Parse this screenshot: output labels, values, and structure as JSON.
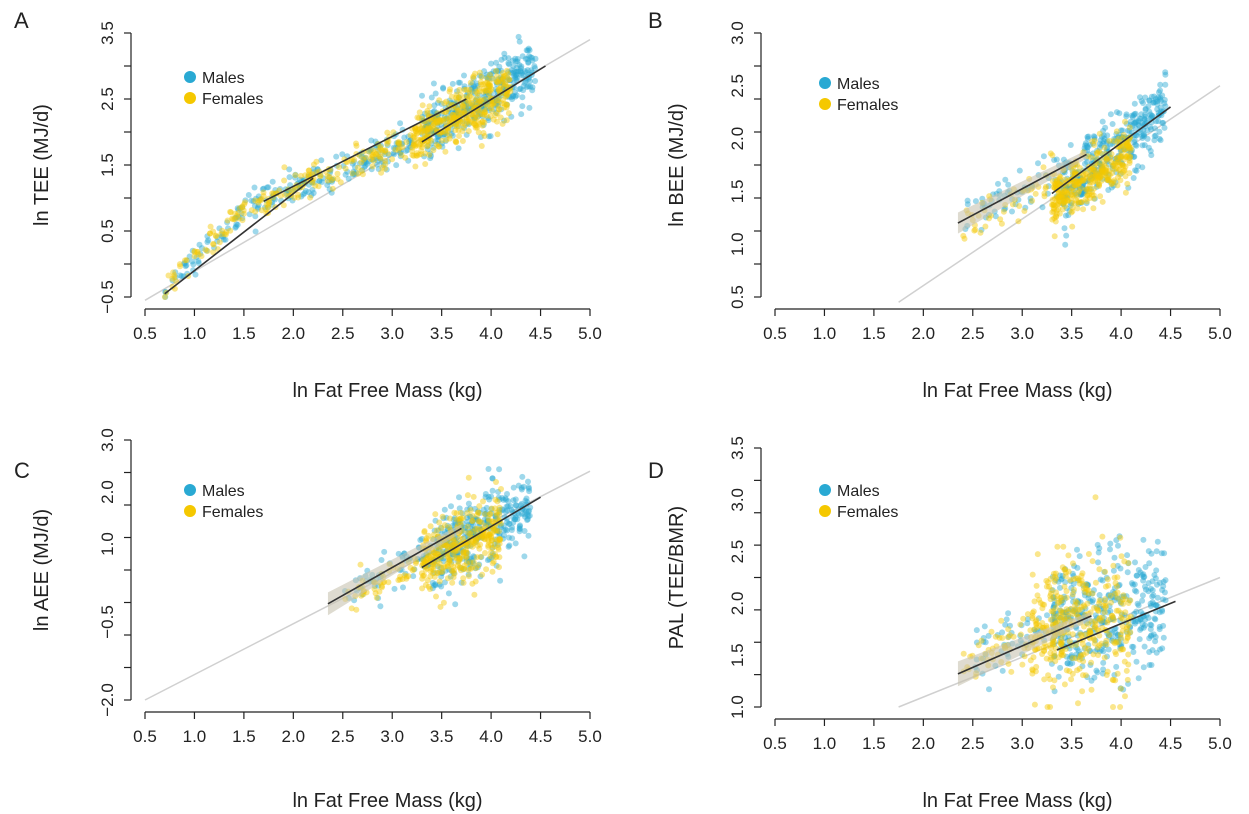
{
  "colors": {
    "males": "#29a9d3",
    "females": "#f5c800",
    "fit_line": "#333333",
    "identity_line": "#d0d0d0",
    "ci_band": "#c8c3b0"
  },
  "chart_data": [
    {
      "type": "scatter",
      "panel_label": "A",
      "xlabel": "ln Fat Free Mass (kg)",
      "ylabel": "ln TEE (MJ/d)",
      "xlim": [
        0.5,
        5.0
      ],
      "ylim": [
        -0.5,
        3.5
      ],
      "x_ticks": [
        "0.5",
        "1.0",
        "1.5",
        "2.0",
        "2.5",
        "3.0",
        "3.5",
        "4.0",
        "4.5",
        "5.0"
      ],
      "y_ticks": [
        "−0.5",
        "0.5",
        "1.5",
        "2.5",
        "3.5"
      ],
      "y_tick_values": [
        -0.5,
        0.5,
        1.5,
        2.5,
        3.5
      ],
      "legend": {
        "position": "top-left",
        "entries": [
          "Males",
          "Females"
        ]
      },
      "series": [
        {
          "name": "Males",
          "clusters": [
            {
              "x_range": [
                0.7,
                1.6
              ],
              "slope": 1.55,
              "x0": 0.7,
              "y0": -0.4,
              "sd": 0.1,
              "n": 60
            },
            {
              "x_range": [
                1.6,
                3.2
              ],
              "slope": 0.6,
              "x0": 1.6,
              "y0": 0.9,
              "sd": 0.12,
              "n": 180
            },
            {
              "x_range": [
                3.3,
                4.45
              ],
              "slope": 0.9,
              "x0": 3.3,
              "y0": 1.95,
              "sd": 0.22,
              "n": 380
            }
          ]
        },
        {
          "name": "Females",
          "clusters": [
            {
              "x_range": [
                0.7,
                1.6
              ],
              "slope": 1.55,
              "x0": 0.7,
              "y0": -0.4,
              "sd": 0.1,
              "n": 60
            },
            {
              "x_range": [
                1.6,
                3.3
              ],
              "slope": 0.6,
              "x0": 1.6,
              "y0": 0.9,
              "sd": 0.12,
              "n": 160
            },
            {
              "x_range": [
                3.2,
                4.2
              ],
              "slope": 0.8,
              "x0": 3.2,
              "y0": 1.85,
              "sd": 0.22,
              "n": 360
            }
          ]
        }
      ],
      "fit_lines": [
        {
          "x": [
            0.7,
            2.2
          ],
          "y": [
            -0.45,
            1.3
          ]
        },
        {
          "x": [
            1.7,
            3.75
          ],
          "y": [
            0.95,
            2.5
          ]
        },
        {
          "x": [
            3.3,
            4.55
          ],
          "y": [
            1.85,
            3.0
          ]
        }
      ],
      "ci_bands": [],
      "identity_line": {
        "x": [
          0.5,
          5.0
        ],
        "y": [
          -0.55,
          3.4
        ]
      }
    },
    {
      "type": "scatter",
      "panel_label": "B",
      "xlabel": "ln Fat Free Mass (kg)",
      "ylabel": "ln BEE (MJ/d)",
      "xlim": [
        0.5,
        5.0
      ],
      "ylim": [
        0.5,
        3.0
      ],
      "x_ticks": [
        "0.5",
        "1.0",
        "1.5",
        "2.0",
        "2.5",
        "3.0",
        "3.5",
        "4.0",
        "4.5",
        "5.0"
      ],
      "y_ticks": [
        "0.5",
        "1.0",
        "1.5",
        "2.0",
        "2.5",
        "3.0"
      ],
      "y_tick_values": [
        0.5,
        1.0,
        1.5,
        2.0,
        2.5,
        3.0
      ],
      "legend": {
        "position": "top-left",
        "entries": [
          "Males",
          "Females"
        ]
      },
      "series": [
        {
          "name": "Males",
          "clusters": [
            {
              "x_range": [
                2.4,
                3.4
              ],
              "slope": 0.45,
              "x0": 2.4,
              "y0": 1.25,
              "sd": 0.1,
              "n": 60
            },
            {
              "x_range": [
                3.4,
                4.45
              ],
              "slope": 0.75,
              "x0": 3.4,
              "y0": 1.5,
              "sd": 0.16,
              "n": 360
            }
          ]
        },
        {
          "name": "Females",
          "clusters": [
            {
              "x_range": [
                2.4,
                3.4
              ],
              "slope": 0.45,
              "x0": 2.4,
              "y0": 1.2,
              "sd": 0.1,
              "n": 50
            },
            {
              "x_range": [
                3.3,
                4.1
              ],
              "slope": 0.55,
              "x0": 3.3,
              "y0": 1.4,
              "sd": 0.14,
              "n": 340
            }
          ]
        }
      ],
      "fit_lines": [
        {
          "x": [
            2.35,
            3.65
          ],
          "y": [
            1.2,
            1.85
          ]
        },
        {
          "x": [
            3.3,
            4.5
          ],
          "y": [
            1.48,
            2.3
          ]
        }
      ],
      "ci_bands": [
        {
          "x": [
            2.35,
            3.65
          ],
          "y": [
            1.2,
            1.85
          ],
          "halfwidth_start": 0.1,
          "halfwidth_end": 0.04
        }
      ],
      "identity_line": {
        "x": [
          1.75,
          5.0
        ],
        "y": [
          0.45,
          2.5
        ]
      }
    },
    {
      "type": "scatter",
      "panel_label": "C",
      "xlabel": "ln Fat Free Mass (kg)",
      "ylabel": "ln AEE (MJ/d)",
      "xlim": [
        0.5,
        5.0
      ],
      "ylim": [
        -2.0,
        3.0
      ],
      "x_ticks": [
        "0.5",
        "1.0",
        "1.5",
        "2.0",
        "2.5",
        "3.0",
        "3.5",
        "4.0",
        "4.5",
        "5.0"
      ],
      "y_ticks": [
        "−2.0",
        "−0.5",
        "1.0",
        "2.0",
        "3.0"
      ],
      "y_tick_values": [
        -2.0,
        -0.5,
        1.0,
        2.0,
        3.0
      ],
      "legend": {
        "position": "top-left",
        "entries": [
          "Males",
          "Females"
        ]
      },
      "series": [
        {
          "name": "Males",
          "clusters": [
            {
              "x_range": [
                2.5,
                3.4
              ],
              "slope": 0.9,
              "x0": 2.5,
              "y0": 0.0,
              "sd": 0.18,
              "n": 60
            },
            {
              "x_range": [
                3.4,
                4.4
              ],
              "slope": 0.95,
              "x0": 3.4,
              "y0": 0.8,
              "sd": 0.35,
              "n": 360
            }
          ]
        },
        {
          "name": "Females",
          "clusters": [
            {
              "x_range": [
                2.5,
                3.4
              ],
              "slope": 0.9,
              "x0": 2.5,
              "y0": -0.05,
              "sd": 0.18,
              "n": 50
            },
            {
              "x_range": [
                3.3,
                4.1
              ],
              "slope": 0.9,
              "x0": 3.3,
              "y0": 0.6,
              "sd": 0.35,
              "n": 340
            }
          ]
        }
      ],
      "fit_lines": [
        {
          "x": [
            2.35,
            3.7
          ],
          "y": [
            -0.15,
            1.3
          ]
        },
        {
          "x": [
            3.3,
            4.5
          ],
          "y": [
            0.55,
            1.9
          ]
        }
      ],
      "ci_bands": [
        {
          "x": [
            2.35,
            3.7
          ],
          "y": [
            -0.15,
            1.3
          ],
          "halfwidth_start": 0.22,
          "halfwidth_end": 0.08
        }
      ],
      "identity_line": {
        "x": [
          0.5,
          5.0
        ],
        "y": [
          -2.0,
          2.4
        ]
      }
    },
    {
      "type": "scatter",
      "panel_label": "D",
      "xlabel": "ln Fat Free Mass (kg)",
      "ylabel": "PAL (TEE/BMR)",
      "xlim": [
        0.5,
        5.0
      ],
      "ylim": [
        1.0,
        3.5
      ],
      "x_ticks": [
        "0.5",
        "1.0",
        "1.5",
        "2.0",
        "2.5",
        "3.0",
        "3.5",
        "4.0",
        "4.5",
        "5.0"
      ],
      "y_ticks": [
        "1.0",
        "1.5",
        "2.0",
        "2.5",
        "3.0",
        "3.5"
      ],
      "y_tick_values": [
        1.0,
        1.5,
        2.0,
        2.5,
        3.0,
        3.5
      ],
      "legend": {
        "position": "top-left",
        "entries": [
          "Males",
          "Females"
        ]
      },
      "series": [
        {
          "name": "Males",
          "clusters": [
            {
              "x_range": [
                2.5,
                3.4
              ],
              "slope": 0.3,
              "x0": 2.5,
              "y0": 1.5,
              "sd": 0.15,
              "n": 60
            },
            {
              "x_range": [
                3.3,
                4.45
              ],
              "slope": 0.15,
              "x0": 3.3,
              "y0": 1.8,
              "sd": 0.3,
              "n": 380
            }
          ]
        },
        {
          "name": "Females",
          "clusters": [
            {
              "x_range": [
                2.4,
                3.4
              ],
              "slope": 0.3,
              "x0": 2.4,
              "y0": 1.45,
              "sd": 0.15,
              "n": 60
            },
            {
              "x_range": [
                3.1,
                4.1
              ],
              "slope": 0.1,
              "x0": 3.1,
              "y0": 1.75,
              "sd": 0.32,
              "n": 360
            }
          ]
        }
      ],
      "fit_lines": [
        {
          "x": [
            2.35,
            3.7
          ],
          "y": [
            1.32,
            1.88
          ]
        },
        {
          "x": [
            3.35,
            4.55
          ],
          "y": [
            1.55,
            2.02
          ]
        }
      ],
      "ci_bands": [
        {
          "x": [
            2.35,
            3.7
          ],
          "y": [
            1.32,
            1.88
          ],
          "halfwidth_start": 0.12,
          "halfwidth_end": 0.04
        }
      ],
      "identity_line": {
        "x": [
          1.75,
          5.0
        ],
        "y": [
          1.0,
          2.25
        ]
      }
    }
  ]
}
